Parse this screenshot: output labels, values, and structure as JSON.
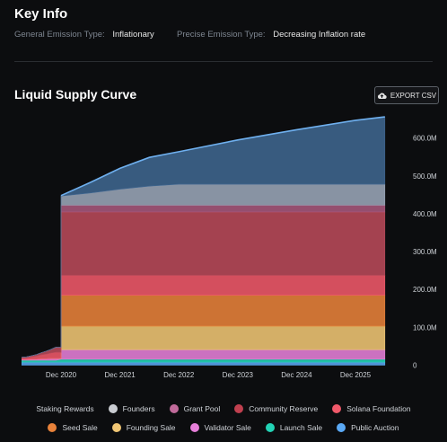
{
  "key_info": {
    "title": "Key Info",
    "general_label": "General Emission Type:",
    "general_value": "Inflationary",
    "precise_label": "Precise Emission Type:",
    "precise_value": "Decreasing Inflation rate"
  },
  "chart_title": "Liquid Supply Curve",
  "export_label": "EXPORT CSV",
  "chart_data": {
    "type": "area",
    "title": "Liquid Supply Curve",
    "stacked": true,
    "xlabel": "",
    "ylabel": "",
    "x_ticks": [
      "Dec 2020",
      "Dec 2021",
      "Dec 2022",
      "Dec 2023",
      "Dec 2024",
      "Dec 2025"
    ],
    "y_ticks": [
      "0",
      "100.0M",
      "200.0M",
      "300.0M",
      "400.0M",
      "500.0M",
      "600.0M"
    ],
    "ylim": [
      0,
      680
    ],
    "y_unit": "M",
    "x": [
      "Apr 2020",
      "May 2020",
      "Jun 2020",
      "Jul 2020",
      "Aug 2020",
      "Sep 2020",
      "Oct 2020",
      "Nov 2020",
      "Dec 2020",
      "Jun 2021",
      "Dec 2021",
      "Jun 2022",
      "Dec 2022",
      "Dec 2023",
      "Dec 2024",
      "Dec 2025",
      "Jun 2026"
    ],
    "series": [
      {
        "name": "Public Auction",
        "color": "#5aa9f5",
        "values": [
          8,
          8,
          8,
          8,
          8,
          8,
          8,
          8,
          8,
          8,
          8,
          8,
          8,
          8,
          8,
          8,
          8
        ]
      },
      {
        "name": "Launch Sale",
        "color": "#22d3b5",
        "values": [
          5,
          5,
          5,
          5,
          5,
          5,
          5,
          5,
          8,
          8,
          8,
          8,
          8,
          8,
          8,
          8,
          8
        ]
      },
      {
        "name": "Validator Sale",
        "color": "#e67fd9",
        "values": [
          2,
          2,
          3,
          3,
          4,
          4,
          5,
          5,
          25,
          25,
          25,
          25,
          25,
          25,
          25,
          25,
          25
        ]
      },
      {
        "name": "Founding Sale",
        "color": "#f0c674",
        "values": [
          0,
          0,
          0,
          0,
          0,
          0,
          0,
          0,
          62,
          62,
          62,
          62,
          62,
          62,
          62,
          62,
          62
        ]
      },
      {
        "name": "Seed Sale",
        "color": "#e8823a",
        "values": [
          0,
          0,
          0,
          0,
          0,
          0,
          0,
          0,
          82,
          82,
          82,
          82,
          82,
          82,
          82,
          82,
          82
        ]
      },
      {
        "name": "Solana Foundation",
        "color": "#f0596a",
        "values": [
          3,
          4,
          6,
          8,
          10,
          12,
          14,
          16,
          52,
          52,
          52,
          52,
          52,
          52,
          52,
          52,
          52
        ]
      },
      {
        "name": "Community Reserve",
        "color": "#b94a5a",
        "values": [
          3,
          3,
          3,
          4,
          6,
          8,
          10,
          14,
          168,
          168,
          168,
          168,
          168,
          168,
          168,
          168,
          168
        ]
      },
      {
        "name": "Grant Pool",
        "color": "#a8597d",
        "values": [
          0,
          0,
          0,
          0,
          0,
          0,
          0,
          0,
          18,
          18,
          18,
          18,
          18,
          18,
          18,
          18,
          18
        ]
      },
      {
        "name": "Founders",
        "color": "#9aa6b8",
        "values": [
          0,
          0,
          0,
          0,
          0,
          0,
          0,
          0,
          24,
          32,
          42,
          50,
          55,
          55,
          55,
          55,
          55
        ]
      },
      {
        "name": "Staking Rewards",
        "color": "#3f6690",
        "values": [
          0,
          0,
          0,
          0,
          0,
          0,
          0,
          0,
          1,
          28,
          55,
          76,
          86,
          117,
          144,
          169,
          178
        ]
      }
    ],
    "legend_position": "bottom"
  },
  "legend": {
    "row1": [
      {
        "label": "Staking Rewards",
        "color": ""
      },
      {
        "label": "Founders",
        "color": "#c9ccd1"
      },
      {
        "label": "Grant Pool",
        "color": "#c06a9a"
      },
      {
        "label": "Community Reserve",
        "color": "#c0404f"
      },
      {
        "label": "Solana Foundation",
        "color": "#f0596a"
      }
    ],
    "row2": [
      {
        "label": "Seed Sale",
        "color": "#e8823a"
      },
      {
        "label": "Founding Sale",
        "color": "#f0c674"
      },
      {
        "label": "Validator Sale",
        "color": "#e67fd9"
      },
      {
        "label": "Launch Sale",
        "color": "#22d3b5"
      },
      {
        "label": "Public Auction",
        "color": "#5aa9f5"
      }
    ]
  }
}
